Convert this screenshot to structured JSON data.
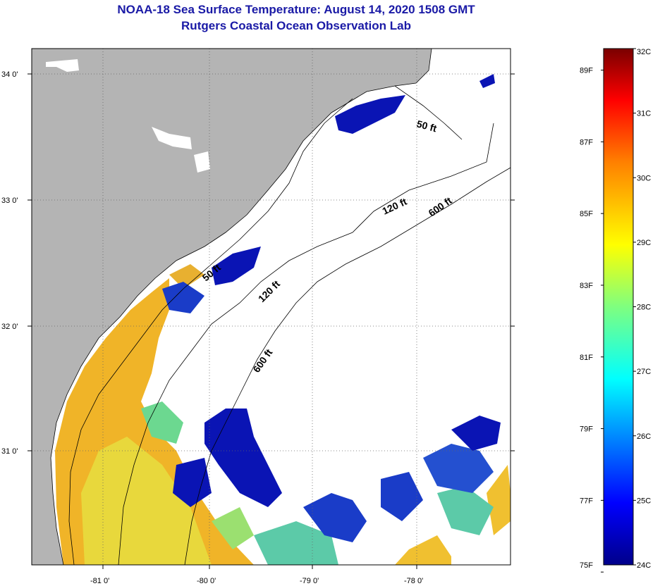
{
  "header": {
    "title": "NOAA-18 Sea Surface Temperature:  August 14, 2020 1508 GMT",
    "subtitle": "Rutgers Coastal Ocean Observation Lab"
  },
  "map": {
    "lat_labels": [
      "34 0'",
      "33 0'",
      "32 0'",
      "31 0'"
    ],
    "lon_labels": [
      "-81 0'",
      "-80 0'",
      "-79 0'",
      "-78 0'"
    ],
    "lat_range": [
      30.1,
      34.2
    ],
    "lon_range": [
      -81.7,
      -77.2
    ],
    "contours": [
      {
        "label": "50 ft"
      },
      {
        "label": "120 ft"
      },
      {
        "label": "600 ft"
      },
      {
        "label": "50 ft"
      },
      {
        "label": "120 ft"
      },
      {
        "label": "600 ft"
      }
    ],
    "colors": {
      "land": "#b4b4b4",
      "cloud": "#ffffff",
      "water_cool": "#0a14b4",
      "water_warm": "#f0b428"
    }
  },
  "colorbar": {
    "celsius": [
      "32C",
      "31C",
      "30C",
      "29C",
      "28C",
      "27C",
      "26C",
      "25C",
      "24C"
    ],
    "fahrenheit": [
      "89F",
      "87F",
      "85F",
      "83F",
      "81F",
      "79F",
      "77F",
      "75F"
    ],
    "range_c": [
      24,
      32
    ]
  }
}
